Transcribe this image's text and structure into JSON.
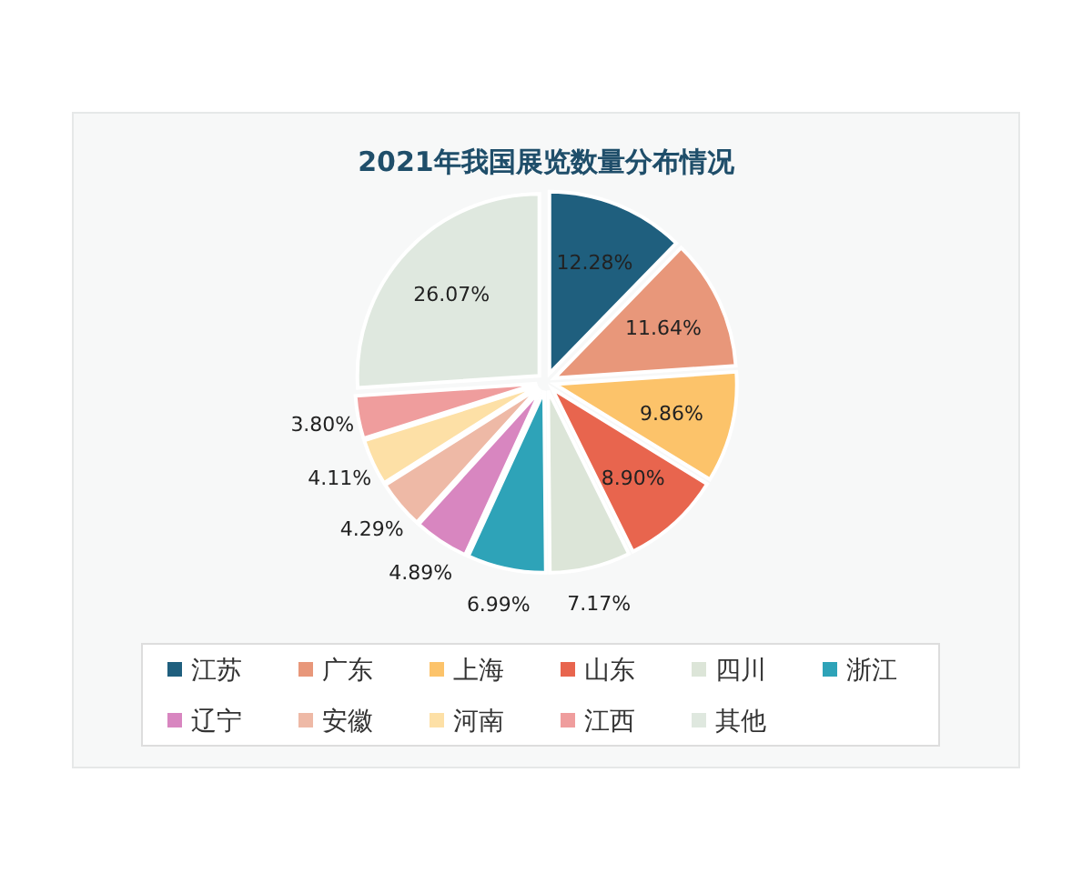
{
  "chart_data": {
    "type": "pie",
    "title": "2021年我国展览数量分布情况",
    "categories": [
      "江苏",
      "广东",
      "上海",
      "山东",
      "四川",
      "浙江",
      "辽宁",
      "安徽",
      "河南",
      "江西",
      "其他"
    ],
    "values": [
      12.28,
      11.64,
      9.86,
      8.9,
      7.17,
      6.99,
      4.89,
      4.29,
      4.11,
      3.8,
      26.07
    ],
    "value_labels": [
      "12.28%",
      "11.64%",
      "9.86%",
      "8.90%",
      "7.17%",
      "6.99%",
      "4.89%",
      "4.29%",
      "4.11%",
      "3.80%",
      "26.07%"
    ],
    "colors": [
      "#1f5f7e",
      "#e8977a",
      "#fcc36a",
      "#e8654e",
      "#dce5d8",
      "#2ea3b8",
      "#d886c0",
      "#eeb9a6",
      "#fde0a6",
      "#ef9d9d",
      "#dfe8df"
    ],
    "legend": "bottom"
  }
}
